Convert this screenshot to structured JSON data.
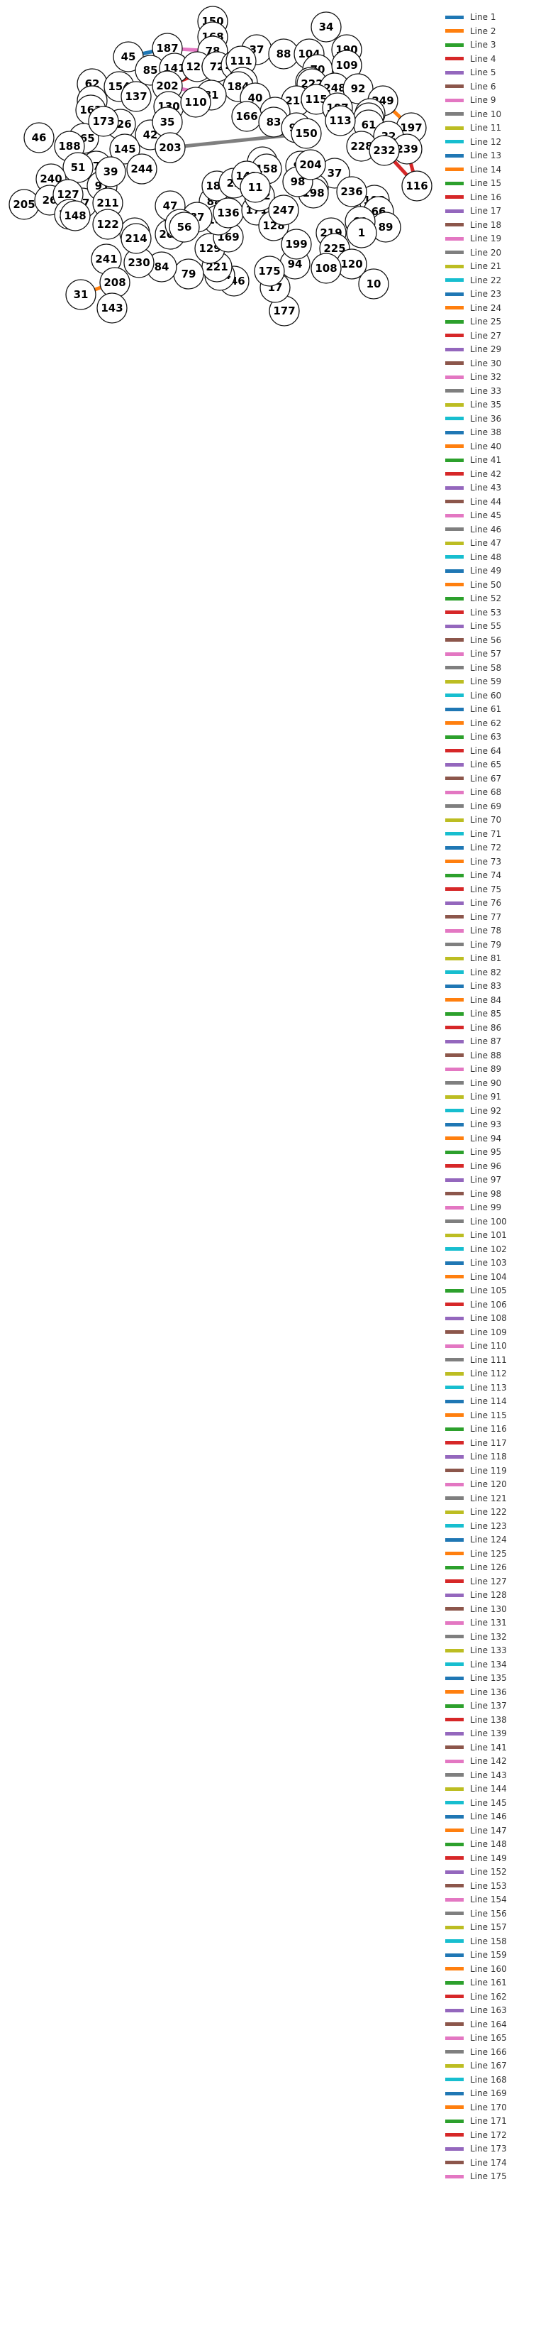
{
  "palette": [
    "#1f77b4",
    "#ff7f0e",
    "#2ca02c",
    "#d62728",
    "#9467bd",
    "#8c564b",
    "#e377c2",
    "#7f7f7f",
    "#bcbd22",
    "#17becf"
  ],
  "legend": {
    "items": [
      "Line 1",
      "Line 2",
      "Line 3",
      "Line 4",
      "Line 5",
      "Line 6",
      "Line 9",
      "Line 10",
      "Line 11",
      "Line 12",
      "Line 13",
      "Line 14",
      "Line 15",
      "Line 16",
      "Line 17",
      "Line 18",
      "Line 19",
      "Line 20",
      "Line 21",
      "Line 22",
      "Line 23",
      "Line 24",
      "Line 25",
      "Line 27",
      "Line 29",
      "Line 30",
      "Line 32",
      "Line 33",
      "Line 35",
      "Line 36",
      "Line 38",
      "Line 40",
      "Line 41",
      "Line 42",
      "Line 43",
      "Line 44",
      "Line 45",
      "Line 46",
      "Line 47",
      "Line 48",
      "Line 49",
      "Line 50",
      "Line 52",
      "Line 53",
      "Line 55",
      "Line 56",
      "Line 57",
      "Line 58",
      "Line 59",
      "Line 60",
      "Line 61",
      "Line 62",
      "Line 63",
      "Line 64",
      "Line 65",
      "Line 67",
      "Line 68",
      "Line 69",
      "Line 70",
      "Line 71",
      "Line 72",
      "Line 73",
      "Line 74",
      "Line 75",
      "Line 76",
      "Line 77",
      "Line 78",
      "Line 79",
      "Line 81",
      "Line 82",
      "Line 83",
      "Line 84",
      "Line 85",
      "Line 86",
      "Line 87",
      "Line 88",
      "Line 89",
      "Line 90",
      "Line 91",
      "Line 92",
      "Line 93",
      "Line 94",
      "Line 95",
      "Line 96",
      "Line 97",
      "Line 98",
      "Line 99",
      "Line 100",
      "Line 101",
      "Line 102",
      "Line 103",
      "Line 104",
      "Line 105",
      "Line 106",
      "Line 108",
      "Line 109",
      "Line 110",
      "Line 111",
      "Line 112",
      "Line 113",
      "Line 114",
      "Line 115",
      "Line 116",
      "Line 117",
      "Line 118",
      "Line 119",
      "Line 120",
      "Line 121",
      "Line 122",
      "Line 123",
      "Line 124",
      "Line 125",
      "Line 126",
      "Line 127",
      "Line 128",
      "Line 130",
      "Line 131",
      "Line 132",
      "Line 133",
      "Line 134",
      "Line 135",
      "Line 136",
      "Line 137",
      "Line 138",
      "Line 139",
      "Line 141",
      "Line 142",
      "Line 143",
      "Line 144",
      "Line 145",
      "Line 146",
      "Line 147",
      "Line 148",
      "Line 149",
      "Line 152",
      "Line 153",
      "Line 154",
      "Line 156",
      "Line 157",
      "Line 158",
      "Line 159",
      "Line 160",
      "Line 161",
      "Line 162",
      "Line 163",
      "Line 164",
      "Line 165",
      "Line 166",
      "Line 167",
      "Line 168",
      "Line 169",
      "Line 170",
      "Line 171",
      "Line 172",
      "Line 173",
      "Line 174",
      "Line 175"
    ]
  },
  "nodes": [
    {
      "label": "150"
    },
    {
      "label": "34"
    },
    {
      "label": "168"
    },
    {
      "label": "187"
    },
    {
      "label": "78"
    },
    {
      "label": "37"
    },
    {
      "label": "88"
    },
    {
      "label": "104"
    },
    {
      "label": "190"
    },
    {
      "label": "45"
    },
    {
      "label": "85"
    },
    {
      "label": "141"
    },
    {
      "label": "126"
    },
    {
      "label": "72"
    },
    {
      "label": "207"
    },
    {
      "label": "111"
    },
    {
      "label": "70"
    },
    {
      "label": "109"
    },
    {
      "label": "62"
    },
    {
      "label": "154"
    },
    {
      "label": "202"
    },
    {
      "label": "209"
    },
    {
      "label": "63"
    },
    {
      "label": "184"
    },
    {
      "label": "241"
    },
    {
      "label": "222"
    },
    {
      "label": "248"
    },
    {
      "label": "92"
    },
    {
      "label": "249"
    },
    {
      "label": "82"
    },
    {
      "label": "137"
    },
    {
      "label": "81"
    },
    {
      "label": "40"
    },
    {
      "label": "218"
    },
    {
      "label": "115"
    },
    {
      "label": "162"
    },
    {
      "label": "130"
    },
    {
      "label": "110"
    },
    {
      "label": "107"
    },
    {
      "label": "135"
    },
    {
      "label": "197"
    },
    {
      "label": "46"
    },
    {
      "label": "165"
    },
    {
      "label": "188"
    },
    {
      "label": "29"
    },
    {
      "label": "166"
    },
    {
      "label": "83"
    },
    {
      "label": "90"
    },
    {
      "label": "150"
    },
    {
      "label": "55"
    },
    {
      "label": "61"
    },
    {
      "label": "32"
    },
    {
      "label": "239"
    },
    {
      "label": "113"
    },
    {
      "label": "126"
    },
    {
      "label": "173"
    },
    {
      "label": "42"
    },
    {
      "label": "35"
    },
    {
      "label": "27"
    },
    {
      "label": "203"
    },
    {
      "label": "145"
    },
    {
      "label": "228"
    },
    {
      "label": "232"
    },
    {
      "label": "116"
    },
    {
      "label": "174"
    },
    {
      "label": "51"
    },
    {
      "label": "244"
    },
    {
      "label": "88"
    },
    {
      "label": "186"
    },
    {
      "label": "5"
    },
    {
      "label": "37"
    },
    {
      "label": "240"
    },
    {
      "label": "205"
    },
    {
      "label": "26"
    },
    {
      "label": "127"
    },
    {
      "label": "91"
    },
    {
      "label": "39"
    },
    {
      "label": "211"
    },
    {
      "label": "191"
    },
    {
      "label": "148"
    },
    {
      "label": "193"
    },
    {
      "label": "66"
    },
    {
      "label": "89"
    },
    {
      "label": "69"
    },
    {
      "label": "1"
    },
    {
      "label": "219"
    },
    {
      "label": "225"
    },
    {
      "label": "120"
    },
    {
      "label": "208"
    },
    {
      "label": "31"
    },
    {
      "label": "143"
    },
    {
      "label": "177"
    },
    {
      "label": "17"
    },
    {
      "label": "10"
    },
    {
      "label": "246"
    },
    {
      "label": "234"
    },
    {
      "label": "221"
    },
    {
      "label": "79"
    },
    {
      "label": "84"
    },
    {
      "label": "230"
    },
    {
      "label": "163"
    },
    {
      "label": "214"
    },
    {
      "label": "122"
    },
    {
      "label": "129"
    },
    {
      "label": "169"
    },
    {
      "label": "180"
    },
    {
      "label": "136"
    },
    {
      "label": "171"
    },
    {
      "label": "128"
    },
    {
      "label": "189"
    },
    {
      "label": "198"
    },
    {
      "label": "236"
    },
    {
      "label": "108"
    },
    {
      "label": "94"
    },
    {
      "label": "175"
    },
    {
      "label": "206"
    },
    {
      "label": "199"
    },
    {
      "label": "22"
    },
    {
      "label": "96"
    },
    {
      "label": "98"
    },
    {
      "label": "158"
    },
    {
      "label": "204"
    },
    {
      "label": "192"
    },
    {
      "label": "142"
    },
    {
      "label": "247"
    },
    {
      "label": "87"
    },
    {
      "label": "47"
    },
    {
      "label": "118"
    },
    {
      "label": "56"
    },
    {
      "label": "11"
    }
  ],
  "edges": [
    {
      "from": 9,
      "to": 3,
      "color": "#1f77b4"
    },
    {
      "from": 3,
      "to": 4,
      "color": "#e377c2"
    },
    {
      "from": 4,
      "to": 11,
      "color": "#e377c2"
    },
    {
      "from": 13,
      "to": 20,
      "color": "#d62728"
    },
    {
      "from": 20,
      "to": 31,
      "color": "#e377c2"
    },
    {
      "from": 16,
      "to": 22,
      "color": "#9467bd"
    },
    {
      "from": 27,
      "to": 28,
      "color": "#8c564b"
    },
    {
      "from": 28,
      "to": 40,
      "color": "#ff7f0e"
    },
    {
      "from": 52,
      "to": 63,
      "color": "#d62728"
    },
    {
      "from": 62,
      "to": 63,
      "color": "#d62728"
    },
    {
      "from": 24,
      "to": 88,
      "color": "#ff7f0e"
    },
    {
      "from": 88,
      "to": 89,
      "color": "#ff7f0e"
    },
    {
      "from": 21,
      "to": 23,
      "color": "#bcbd22"
    },
    {
      "from": 48,
      "to": 59,
      "color": "#7f7f7f"
    },
    {
      "from": 61,
      "to": 62,
      "color": "#2ca02c"
    }
  ]
}
